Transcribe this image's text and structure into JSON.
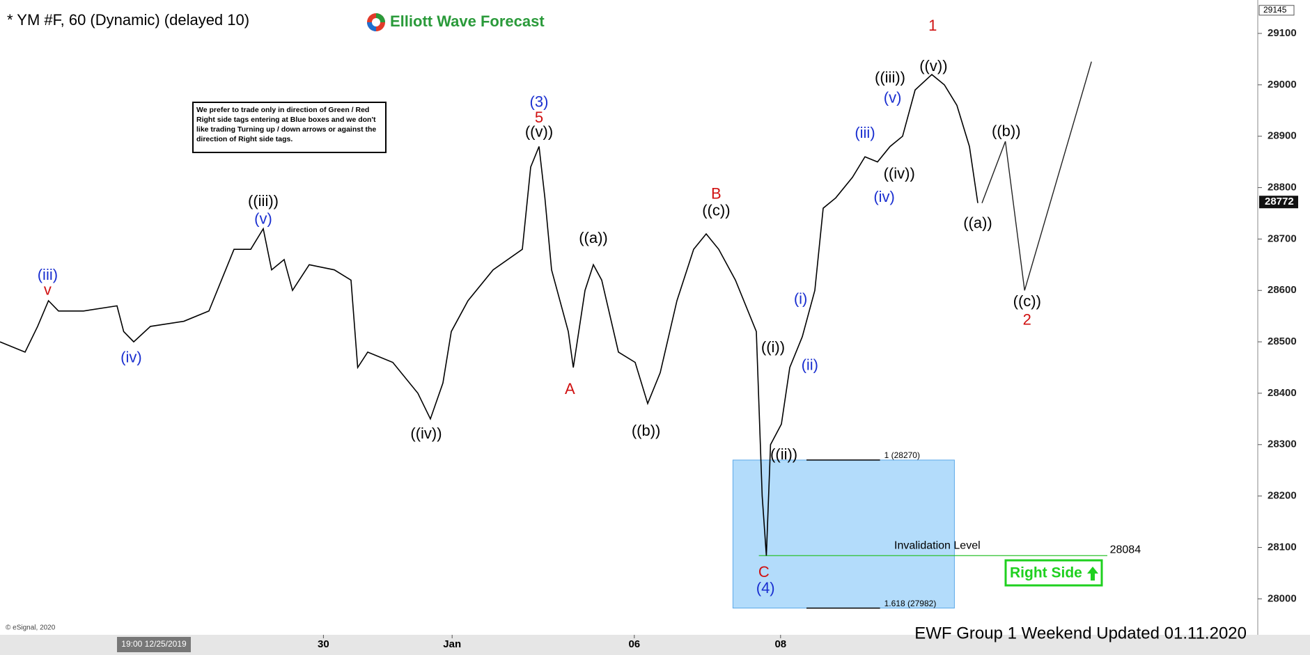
{
  "chart_data": {
    "type": "line",
    "title": "* YM #F, 60 (Dynamic) (delayed 10)",
    "brand": "Elliott Wave Forecast",
    "note": "We prefer to trade only in direction of Green / Red Right side tags entering at Blue boxes and we don't like trading Turning up / down arrows or against the direction of Right side tags.",
    "xlim": [
      0,
      150.5
    ],
    "xticks": [
      {
        "value": 38.7,
        "label": "30"
      },
      {
        "value": 54.1,
        "label": "Jan"
      },
      {
        "value": 75.9,
        "label": "06"
      },
      {
        "value": 93.4,
        "label": "08"
      }
    ],
    "ylim": [
      27930,
      29165
    ],
    "yticks": [
      28000,
      28100,
      28200,
      28300,
      28400,
      28500,
      28600,
      28700,
      28800,
      28900,
      29000,
      29100
    ],
    "series": [
      {
        "color": "#000000",
        "x": [
          0,
          3,
          4.5,
          5.8,
          7,
          10,
          14,
          14.8,
          16,
          18,
          22,
          25,
          26.5,
          28,
          30,
          31.5,
          32.5,
          34,
          35,
          37,
          40,
          42,
          42.8,
          44,
          47,
          50,
          51.5,
          53,
          54,
          56,
          59,
          62.5,
          63.5,
          64.5,
          65.2,
          66,
          68,
          68.6,
          70,
          71,
          72,
          74,
          76,
          77.5,
          79,
          81,
          83,
          84.5,
          86,
          88,
          90.5,
          91.2,
          91.7,
          92.2,
          93.5,
          94.5,
          96,
          97.5,
          98.5,
          100,
          102,
          103.5,
          105,
          106.5,
          108,
          109.5,
          111.5,
          113,
          114.5,
          116,
          117
        ],
        "values": [
          28500,
          28480,
          28530,
          28580,
          28560,
          28560,
          28570,
          28520,
          28500,
          28530,
          28540,
          28560,
          28620,
          28680,
          28680,
          28720,
          28640,
          28660,
          28600,
          28650,
          28640,
          28620,
          28450,
          28480,
          28460,
          28400,
          28350,
          28420,
          28520,
          28580,
          28640,
          28680,
          28840,
          28880,
          28780,
          28640,
          28520,
          28450,
          28600,
          28650,
          28620,
          28480,
          28460,
          28380,
          28440,
          28580,
          28680,
          28710,
          28680,
          28620,
          28520,
          28200,
          28084,
          28300,
          28340,
          28450,
          28510,
          28600,
          28760,
          28780,
          28820,
          28860,
          28850,
          28880,
          28900,
          28990,
          29020,
          29000,
          28960,
          28880,
          28770
        ]
      },
      {
        "color": "#222222",
        "x": [
          117.5,
          120.3,
          122.6,
          130.6
        ],
        "values": [
          28770,
          28890,
          28600,
          29045
        ]
      }
    ],
    "annotations": [
      {
        "text": "(iii)",
        "color": "#1a2fd0"
      },
      {
        "text": "v",
        "color": "#d01010"
      },
      {
        "text": "(iv)",
        "color": "#1a2fd0"
      },
      {
        "text": "((iii))",
        "color": "#000000"
      },
      {
        "text": "(v)",
        "color": "#1a2fd0"
      },
      {
        "text": "((iv))",
        "color": "#000000"
      },
      {
        "text": "(3)",
        "color": "#1a2fd0"
      },
      {
        "text": "5",
        "color": "#d01010"
      },
      {
        "text": "((v))",
        "color": "#000000"
      },
      {
        "text": "((a))",
        "color": "#000000"
      },
      {
        "text": "A",
        "color": "#d01010"
      },
      {
        "text": "((b))",
        "color": "#000000"
      },
      {
        "text": "B",
        "color": "#d01010"
      },
      {
        "text": "((c))",
        "color": "#000000"
      },
      {
        "text": "(i)",
        "color": "#1a2fd0"
      },
      {
        "text": "((i))",
        "color": "#000000"
      },
      {
        "text": "(ii)",
        "color": "#1a2fd0"
      },
      {
        "text": "((ii))",
        "color": "#000000"
      },
      {
        "text": "C",
        "color": "#d01010"
      },
      {
        "text": "(4)",
        "color": "#1a2fd0"
      },
      {
        "text": "(iii)",
        "color": "#1a2fd0"
      },
      {
        "text": "((iii))",
        "color": "#000000"
      },
      {
        "text": "(v)",
        "color": "#1a2fd0"
      },
      {
        "text": "((iv))",
        "color": "#000000"
      },
      {
        "text": "(iv)",
        "color": "#1a2fd0"
      },
      {
        "text": "1",
        "color": "#d01010"
      },
      {
        "text": "((v))",
        "color": "#000000"
      },
      {
        "text": "((b))",
        "color": "#000000"
      },
      {
        "text": "((a))",
        "color": "#000000"
      },
      {
        "text": "((c))",
        "color": "#000000"
      },
      {
        "text": "2",
        "color": "#d01010"
      }
    ],
    "levels": [
      {
        "value": 28270,
        "label": "1 (28270)"
      },
      {
        "value": 27982,
        "label": "1.618 (27982)"
      }
    ],
    "invalidation": {
      "label": "Invalidation Level",
      "value": 28084
    },
    "last_price": 28772,
    "top_price": 29145,
    "right_side": "Right Side",
    "copyright": "© eSignal, 2020",
    "date_box": "19:00 12/25/2019",
    "footer": "EWF Group 1  Weekend  Updated 01.11.2020"
  }
}
